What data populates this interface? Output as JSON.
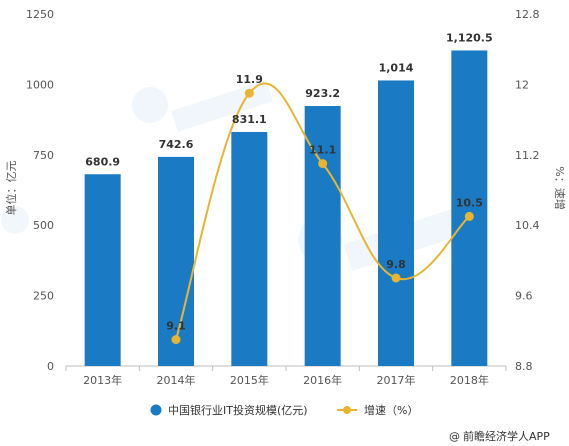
{
  "chart_data": {
    "type": "bar+line",
    "categories": [
      "2013年",
      "2014年",
      "2015年",
      "2016年",
      "2017年",
      "2018年"
    ],
    "series": [
      {
        "name": "中国银行业IT投资规模(亿元)",
        "type": "bar",
        "axis": "left",
        "values": [
          680.9,
          742.6,
          831.1,
          923.2,
          1014,
          1120.5
        ],
        "labels": [
          "680.9",
          "742.6",
          "831.1",
          "923.2",
          "1,014",
          "1,120.5"
        ],
        "color": "#1a7bc4"
      },
      {
        "name": "增速（%）",
        "type": "line",
        "axis": "right",
        "values": [
          null,
          9.1,
          11.9,
          11.1,
          9.8,
          10.5
        ],
        "labels": [
          "",
          "9.1",
          "11.9",
          "11.1",
          "9.8",
          "10.5"
        ],
        "color": "#e9b530"
      }
    ],
    "y_left": {
      "label": "单位：亿元",
      "min": 0,
      "max": 1250,
      "ticks": [
        0,
        250,
        500,
        750,
        1000,
        1250
      ]
    },
    "y_right": {
      "label": "%：速增",
      "min": 8.8,
      "max": 12.8,
      "ticks": [
        8.8,
        9.6,
        10.4,
        11.2,
        12,
        12.8
      ]
    },
    "grid": false,
    "legend_position": "bottom"
  },
  "source": {
    "symbol": "@",
    "text": "前瞻经济学人APP"
  }
}
